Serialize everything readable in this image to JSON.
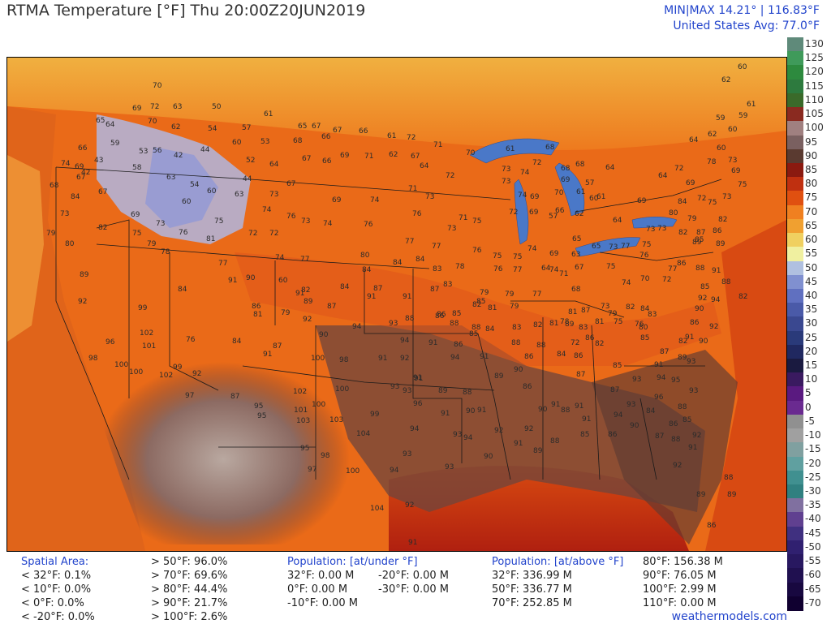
{
  "header": {
    "title": "RTMA Temperature [°F]  Thu 20:00Z20JUN2019",
    "minmax": "MIN|MAX 14.21°  |  116.83°F",
    "average": "United States Avg: 77.0°F"
  },
  "scale": {
    "labels": [
      "130",
      "125",
      "120",
      "115",
      "110",
      "105",
      "100",
      "95",
      "90",
      "85",
      "80",
      "75",
      "70",
      "65",
      "60",
      "55",
      "50",
      "45",
      "40",
      "35",
      "30",
      "25",
      "20",
      "15",
      "10",
      "5",
      "0",
      "-5",
      "-10",
      "-15",
      "-20",
      "-25",
      "-30",
      "-35",
      "-40",
      "-45",
      "-50",
      "-55",
      "-60",
      "-65",
      "-70"
    ],
    "colors": [
      "#5f8a7a",
      "#3f9a5a",
      "#2d8a3e",
      "#2d7a3e",
      "#3a6a2a",
      "#8a2a20",
      "#a08080",
      "#7a6060",
      "#5a3a30",
      "#8b1a10",
      "#c03010",
      "#e05010",
      "#f08020",
      "#f0a030",
      "#f0d060",
      "#f0f0a0",
      "#b0c0e0",
      "#8090d0",
      "#6070c0",
      "#4a5aa8",
      "#3a4890",
      "#2a3a7a",
      "#202860",
      "#1a1a40",
      "#3a1a60",
      "#5a1a80",
      "#6a2a90",
      "#909090",
      "#a0a0a0",
      "#80a0a0",
      "#60a0a0",
      "#409090",
      "#308080",
      "#8070a0",
      "#604090",
      "#403080",
      "#302070",
      "#281860",
      "#201050",
      "#180840",
      "#100030"
    ]
  },
  "stats": {
    "spatial": {
      "header": "Spatial Area:",
      "left": [
        "< 32°F: 0.1%",
        "< 10°F: 0.0%",
        "<  0°F: 0.0%",
        "< -20°F: 0.0%"
      ],
      "right": [
        "> 50°F: 96.0%",
        "> 70°F: 69.6%",
        "> 80°F: 44.4%",
        "> 90°F: 21.7%",
        "> 100°F: 2.6%"
      ]
    },
    "under": {
      "header": "Population: [at/under °F]",
      "left": [
        "32°F: 0.00 M",
        "0°F: 0.00 M",
        "-10°F: 0.00 M"
      ],
      "right": [
        "-20°F: 0.00 M",
        "-30°F: 0.00 M"
      ]
    },
    "above": {
      "header": "Population: [at/above °F]",
      "left": [
        "32°F: 336.99 M",
        "50°F: 336.77 M",
        "70°F: 252.85 M"
      ],
      "right": [
        "80°F: 156.38 M",
        "90°F: 76.05 M",
        "100°F: 2.99 M",
        "110°F: 0.00 M"
      ]
    }
  },
  "credit": "weathermodels.com",
  "stations": [
    [
      "70",
      187,
      107
    ],
    [
      "69",
      162,
      135
    ],
    [
      "72",
      184,
      133
    ],
    [
      "63",
      212,
      133
    ],
    [
      "65",
      117,
      150
    ],
    [
      "70",
      181,
      151
    ],
    [
      "62",
      210,
      158
    ],
    [
      "64",
      129,
      155
    ],
    [
      "66",
      95,
      184
    ],
    [
      "59",
      135,
      178
    ],
    [
      "53",
      170,
      188
    ],
    [
      "56",
      187,
      187
    ],
    [
      "42",
      213,
      193
    ],
    [
      "44",
      246,
      186
    ],
    [
      "50",
      260,
      133
    ],
    [
      "54",
      255,
      160
    ],
    [
      "57",
      297,
      159
    ],
    [
      "60",
      285,
      177
    ],
    [
      "53",
      320,
      176
    ],
    [
      "52",
      302,
      199
    ],
    [
      "64",
      331,
      204
    ],
    [
      "61",
      324,
      142
    ],
    [
      "65",
      366,
      157
    ],
    [
      "67",
      383,
      157
    ],
    [
      "68",
      360,
      175
    ],
    [
      "66",
      395,
      170
    ],
    [
      "67",
      409,
      162
    ],
    [
      "66",
      441,
      163
    ],
    [
      "61",
      476,
      169
    ],
    [
      "72",
      500,
      171
    ],
    [
      "71",
      533,
      180
    ],
    [
      "69",
      418,
      193
    ],
    [
      "67",
      371,
      197
    ],
    [
      "66",
      396,
      200
    ],
    [
      "71",
      448,
      194
    ],
    [
      "62",
      478,
      192
    ],
    [
      "67",
      505,
      194
    ],
    [
      "64",
      516,
      206
    ],
    [
      "72",
      548,
      218
    ],
    [
      "70",
      573,
      190
    ],
    [
      "61",
      622,
      185
    ],
    [
      "68",
      671,
      183
    ],
    [
      "73",
      617,
      210
    ],
    [
      "73",
      617,
      225
    ],
    [
      "72",
      655,
      202
    ],
    [
      "74",
      640,
      214
    ],
    [
      "74",
      637,
      242
    ],
    [
      "69",
      652,
      244
    ],
    [
      "68",
      690,
      209
    ],
    [
      "69",
      690,
      223
    ],
    [
      "68",
      708,
      204
    ],
    [
      "70",
      682,
      239
    ],
    [
      "61",
      709,
      238
    ],
    [
      "57",
      720,
      227
    ],
    [
      "61",
      734,
      244
    ],
    [
      "64",
      745,
      208
    ],
    [
      "59",
      881,
      147
    ],
    [
      "60",
      896,
      161
    ],
    [
      "61",
      919,
      130
    ],
    [
      "62",
      888,
      100
    ],
    [
      "60",
      908,
      84
    ],
    [
      "59",
      909,
      144
    ],
    [
      "62",
      871,
      167
    ],
    [
      "60",
      882,
      184
    ],
    [
      "64",
      848,
      174
    ],
    [
      "64",
      810,
      218
    ],
    [
      "72",
      830,
      209
    ],
    [
      "69",
      844,
      227
    ],
    [
      "78",
      870,
      201
    ],
    [
      "73",
      896,
      199
    ],
    [
      "69",
      900,
      212
    ],
    [
      "75",
      908,
      229
    ],
    [
      "73",
      889,
      244
    ],
    [
      "54",
      233,
      229
    ],
    [
      "60",
      223,
      250
    ],
    [
      "60",
      254,
      237
    ],
    [
      "63",
      288,
      241
    ],
    [
      "44",
      298,
      222
    ],
    [
      "58",
      162,
      208
    ],
    [
      "63",
      204,
      220
    ],
    [
      "43",
      115,
      199
    ],
    [
      "42",
      99,
      214
    ],
    [
      "69",
      91,
      207
    ],
    [
      "67",
      93,
      220
    ],
    [
      "67",
      120,
      238
    ],
    [
      "74",
      74,
      203
    ],
    [
      "68",
      60,
      230
    ],
    [
      "84",
      86,
      244
    ],
    [
      "69",
      160,
      266
    ],
    [
      "73",
      191,
      277
    ],
    [
      "75",
      263,
      274
    ],
    [
      "73",
      331,
      241
    ],
    [
      "67",
      352,
      228
    ],
    [
      "74",
      322,
      260
    ],
    [
      "76",
      352,
      268
    ],
    [
      "73",
      370,
      274
    ],
    [
      "69",
      408,
      248
    ],
    [
      "74",
      455,
      248
    ],
    [
      "71",
      502,
      234
    ],
    [
      "73",
      523,
      244
    ],
    [
      "74",
      397,
      277
    ],
    [
      "76",
      447,
      278
    ],
    [
      "76",
      507,
      265
    ],
    [
      "71",
      564,
      270
    ],
    [
      "73",
      550,
      283
    ],
    [
      "75",
      581,
      274
    ],
    [
      "72",
      626,
      263
    ],
    [
      "69",
      651,
      263
    ],
    [
      "57",
      675,
      268
    ],
    [
      "66",
      683,
      261
    ],
    [
      "62",
      707,
      265
    ],
    [
      "60",
      725,
      246
    ],
    [
      "64",
      754,
      273
    ],
    [
      "69",
      784,
      249
    ],
    [
      "84",
      834,
      250
    ],
    [
      "80",
      823,
      264
    ],
    [
      "72",
      858,
      246
    ],
    [
      "75",
      871,
      251
    ],
    [
      "82",
      884,
      272
    ],
    [
      "79",
      846,
      271
    ],
    [
      "86",
      877,
      286
    ],
    [
      "89",
      881,
      302
    ],
    [
      "85",
      855,
      297
    ],
    [
      "89",
      852,
      300
    ],
    [
      "87",
      857,
      288
    ],
    [
      "82",
      835,
      288
    ],
    [
      "73",
      809,
      283
    ],
    [
      "73",
      795,
      284
    ],
    [
      "75",
      790,
      303
    ],
    [
      "77",
      764,
      305
    ],
    [
      "73",
      749,
      306
    ],
    [
      "65",
      728,
      305
    ],
    [
      "65",
      704,
      296
    ],
    [
      "63",
      703,
      315
    ],
    [
      "69",
      676,
      314
    ],
    [
      "67",
      707,
      331
    ],
    [
      "74",
      676,
      334
    ],
    [
      "71",
      688,
      339
    ],
    [
      "75",
      746,
      330
    ],
    [
      "74",
      765,
      350
    ],
    [
      "76",
      787,
      316
    ],
    [
      "70",
      788,
      345
    ],
    [
      "72",
      815,
      346
    ],
    [
      "77",
      822,
      333
    ],
    [
      "86",
      833,
      326
    ],
    [
      "88",
      856,
      332
    ],
    [
      "91",
      876,
      335
    ],
    [
      "88",
      888,
      349
    ],
    [
      "85",
      862,
      355
    ],
    [
      "92",
      859,
      369
    ],
    [
      "94",
      875,
      371
    ],
    [
      "82",
      909,
      367
    ],
    [
      "90",
      855,
      382
    ],
    [
      "86",
      849,
      399
    ],
    [
      "92",
      873,
      404
    ],
    [
      "90",
      860,
      422
    ],
    [
      "82",
      835,
      422
    ],
    [
      "91",
      843,
      417
    ],
    [
      "89",
      834,
      442
    ],
    [
      "93",
      845,
      447
    ],
    [
      "87",
      812,
      435
    ],
    [
      "94",
      808,
      467
    ],
    [
      "91",
      805,
      451
    ],
    [
      "95",
      826,
      470
    ],
    [
      "93",
      848,
      483
    ],
    [
      "96",
      805,
      491
    ],
    [
      "88",
      834,
      503
    ],
    [
      "84",
      795,
      508
    ],
    [
      "86",
      823,
      524
    ],
    [
      "85",
      840,
      519
    ],
    [
      "92",
      852,
      538
    ],
    [
      "91",
      847,
      553
    ],
    [
      "88",
      826,
      543
    ],
    [
      "87",
      806,
      539
    ],
    [
      "90",
      775,
      526
    ],
    [
      "92",
      828,
      575
    ],
    [
      "89",
      857,
      611
    ],
    [
      "86",
      870,
      649
    ],
    [
      "88",
      891,
      590
    ],
    [
      "89",
      895,
      611
    ],
    [
      "73",
      73,
      265
    ],
    [
      "79",
      56,
      289
    ],
    [
      "80",
      79,
      302
    ],
    [
      "89",
      97,
      340
    ],
    [
      "92",
      95,
      373
    ],
    [
      "82",
      120,
      282
    ],
    [
      "75",
      162,
      289
    ],
    [
      "79",
      180,
      302
    ],
    [
      "78",
      197,
      312
    ],
    [
      "76",
      219,
      288
    ],
    [
      "81",
      253,
      296
    ],
    [
      "77",
      268,
      326
    ],
    [
      "72",
      305,
      289
    ],
    [
      "77",
      369,
      321
    ],
    [
      "74",
      338,
      319
    ],
    [
      "72",
      331,
      289
    ],
    [
      "60",
      342,
      347
    ],
    [
      "91",
      280,
      347
    ],
    [
      "90",
      302,
      344
    ],
    [
      "84",
      218,
      358
    ],
    [
      "91",
      363,
      363
    ],
    [
      "89",
      373,
      373
    ],
    [
      "87",
      402,
      379
    ],
    [
      "82",
      370,
      359
    ],
    [
      "84",
      418,
      355
    ],
    [
      "80",
      443,
      316
    ],
    [
      "84",
      445,
      334
    ],
    [
      "84",
      483,
      325
    ],
    [
      "84",
      511,
      321
    ],
    [
      "83",
      532,
      333
    ],
    [
      "77",
      498,
      299
    ],
    [
      "78",
      560,
      330
    ],
    [
      "77",
      531,
      305
    ],
    [
      "76",
      581,
      310
    ],
    [
      "75",
      606,
      317
    ],
    [
      "76",
      607,
      333
    ],
    [
      "75",
      631,
      318
    ],
    [
      "77",
      631,
      334
    ],
    [
      "74",
      649,
      308
    ],
    [
      "64",
      666,
      332
    ],
    [
      "68",
      703,
      358
    ],
    [
      "79",
      621,
      364
    ],
    [
      "87",
      459,
      357
    ],
    [
      "91",
      451,
      367
    ],
    [
      "91",
      495,
      367
    ],
    [
      "87",
      529,
      358
    ],
    [
      "83",
      545,
      352
    ],
    [
      "79",
      590,
      362
    ],
    [
      "81",
      600,
      381
    ],
    [
      "79",
      627,
      379
    ],
    [
      "77",
      655,
      364
    ],
    [
      "85",
      586,
      373
    ],
    [
      "82",
      581,
      377
    ],
    [
      "83",
      630,
      405
    ],
    [
      "84",
      597,
      407
    ],
    [
      "85",
      577,
      413
    ],
    [
      "85",
      556,
      388
    ],
    [
      "86",
      537,
      389
    ],
    [
      "88",
      553,
      400
    ],
    [
      "88",
      580,
      405
    ],
    [
      "81",
      676,
      400
    ],
    [
      "82",
      656,
      402
    ],
    [
      "78",
      689,
      398
    ],
    [
      "83",
      712,
      405
    ],
    [
      "79",
      748,
      388
    ],
    [
      "75",
      755,
      398
    ],
    [
      "81",
      732,
      398
    ],
    [
      "73",
      739,
      379
    ],
    [
      "82",
      770,
      380
    ],
    [
      "76",
      781,
      401
    ],
    [
      "83",
      797,
      389
    ],
    [
      "84",
      788,
      382
    ],
    [
      "85",
      788,
      418
    ],
    [
      "80",
      786,
      405
    ],
    [
      "87",
      715,
      384
    ],
    [
      "81",
      699,
      386
    ],
    [
      "89",
      695,
      401
    ],
    [
      "86",
      720,
      418
    ],
    [
      "82",
      732,
      425
    ],
    [
      "72",
      702,
      424
    ],
    [
      "84",
      685,
      438
    ],
    [
      "86",
      706,
      440
    ],
    [
      "88",
      660,
      427
    ],
    [
      "86",
      645,
      441
    ],
    [
      "88",
      629,
      424
    ],
    [
      "94",
      554,
      442
    ],
    [
      "91",
      590,
      441
    ],
    [
      "90",
      632,
      457
    ],
    [
      "89",
      608,
      465
    ],
    [
      "87",
      709,
      463
    ],
    [
      "85",
      754,
      452
    ],
    [
      "93",
      778,
      469
    ],
    [
      "87",
      751,
      482
    ],
    [
      "93",
      771,
      500
    ],
    [
      "94",
      755,
      513
    ],
    [
      "91",
      707,
      502
    ],
    [
      "91",
      716,
      518
    ],
    [
      "88",
      690,
      507
    ],
    [
      "85",
      714,
      537
    ],
    [
      "86",
      748,
      537
    ],
    [
      "88",
      677,
      545
    ],
    [
      "89",
      656,
      557
    ],
    [
      "91",
      632,
      548
    ],
    [
      "90",
      662,
      506
    ],
    [
      "91",
      678,
      500
    ],
    [
      "92",
      645,
      530
    ],
    [
      "86",
      643,
      478
    ],
    [
      "90",
      595,
      564
    ],
    [
      "91",
      587,
      507
    ],
    [
      "94",
      570,
      541
    ],
    [
      "92",
      608,
      532
    ],
    [
      "90",
      573,
      508
    ],
    [
      "88",
      569,
      485
    ],
    [
      "89",
      539,
      483
    ],
    [
      "91",
      509,
      468
    ],
    [
      "93",
      495,
      483
    ],
    [
      "96",
      508,
      499
    ],
    [
      "91",
      542,
      511
    ],
    [
      "93",
      557,
      537
    ],
    [
      "94",
      504,
      530
    ],
    [
      "93",
      547,
      577
    ],
    [
      "94",
      479,
      581
    ],
    [
      "93",
      495,
      561
    ],
    [
      "92",
      498,
      624
    ],
    [
      "91",
      502,
      670
    ],
    [
      "104",
      455,
      628
    ],
    [
      "100",
      425,
      582
    ],
    [
      "104",
      438,
      536
    ],
    [
      "103",
      405,
      519
    ],
    [
      "99",
      455,
      512
    ],
    [
      "100",
      412,
      481
    ],
    [
      "102",
      360,
      484
    ],
    [
      "100",
      383,
      500
    ],
    [
      "101",
      361,
      507
    ],
    [
      "103",
      364,
      520
    ],
    [
      "95",
      369,
      554
    ],
    [
      "98",
      394,
      563
    ],
    [
      "97",
      378,
      580
    ],
    [
      "95",
      312,
      502
    ],
    [
      "95",
      316,
      514
    ],
    [
      "87",
      283,
      490
    ],
    [
      "97",
      227,
      489
    ],
    [
      "92",
      236,
      462
    ],
    [
      "99",
      212,
      454
    ],
    [
      "102",
      195,
      464
    ],
    [
      "100",
      158,
      460
    ],
    [
      "101",
      174,
      428
    ],
    [
      "102",
      171,
      412
    ],
    [
      "96",
      129,
      423
    ],
    [
      "100",
      140,
      451
    ],
    [
      "98",
      108,
      443
    ],
    [
      "99",
      169,
      381
    ],
    [
      "81",
      311,
      389
    ],
    [
      "86",
      309,
      379
    ],
    [
      "79",
      345,
      387
    ],
    [
      "92",
      372,
      395
    ],
    [
      "90",
      392,
      414
    ],
    [
      "94",
      433,
      404
    ],
    [
      "93",
      478,
      400
    ],
    [
      "88",
      498,
      394
    ],
    [
      "86",
      535,
      391
    ],
    [
      "94",
      492,
      421
    ],
    [
      "91",
      527,
      424
    ],
    [
      "86",
      558,
      426
    ],
    [
      "100",
      382,
      443
    ],
    [
      "98",
      417,
      445
    ],
    [
      "91",
      465,
      443
    ],
    [
      "92",
      492,
      443
    ],
    [
      "91",
      508,
      467
    ],
    [
      "84",
      285,
      422
    ],
    [
      "87",
      335,
      428
    ],
    [
      "91",
      323,
      438
    ],
    [
      "76",
      228,
      420
    ],
    [
      "93",
      480,
      478
    ]
  ]
}
